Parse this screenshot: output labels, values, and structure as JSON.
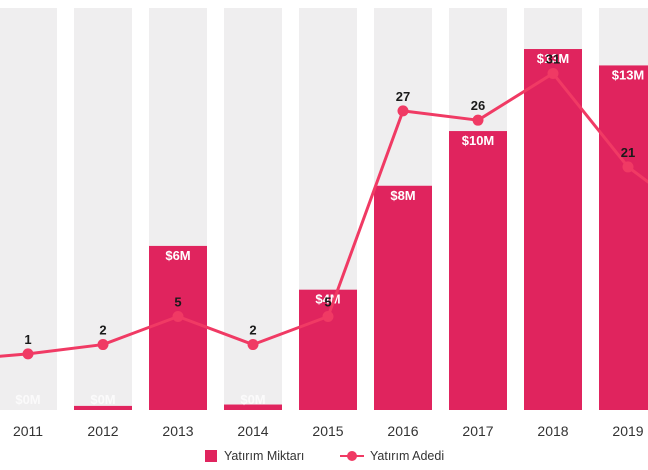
{
  "chart_data": {
    "type": "bar",
    "categories": [
      "2011",
      "2012",
      "2013",
      "2014",
      "2015",
      "2016",
      "2017",
      "2018",
      "2019"
    ],
    "series": [
      {
        "name": "Yatırım Miktarı",
        "kind": "bar",
        "axis": "left",
        "values": [
          0,
          0.15,
          6,
          0.2,
          4.4,
          8.2,
          10.2,
          13.2,
          12.6
        ],
        "labels": [
          "$0M",
          "$0M",
          "$6M",
          "$0M",
          "$4M",
          "$8M",
          "$10M",
          "$13M",
          "$13M"
        ],
        "color": "#e0245e"
      },
      {
        "name": "Yatırım Adedi",
        "kind": "line",
        "axis": "right",
        "values": [
          1,
          2,
          5,
          2,
          5,
          27,
          26,
          31,
          21
        ],
        "labels": [
          "1",
          "2",
          "5",
          "2",
          "5",
          "27",
          "26",
          "31",
          "21"
        ],
        "color": "#f03a64"
      }
    ],
    "y_left_range": [
      0,
      14.7
    ],
    "y_right_range": [
      -5,
      38
    ],
    "title": "",
    "xlabel": "",
    "ylabel": "",
    "grid": false,
    "legend_position": "bottom",
    "background_band_color": "#efeeef"
  }
}
